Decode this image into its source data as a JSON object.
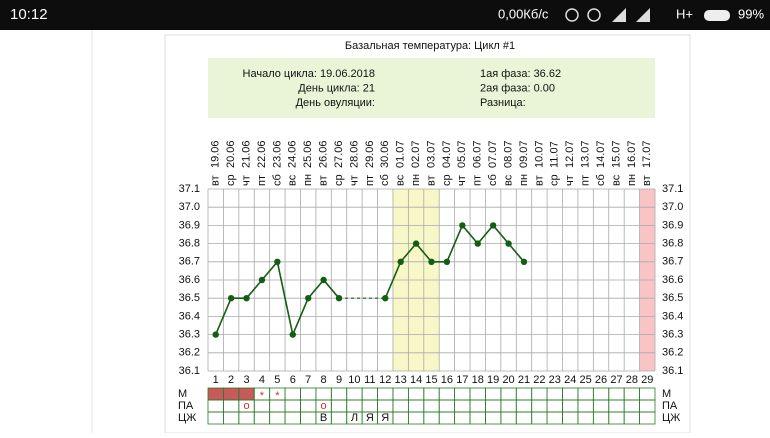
{
  "status_bar": {
    "time": "10:12",
    "speed": "0,00Кб/с",
    "network": "H+",
    "battery": "99%"
  },
  "chart_data": {
    "type": "line",
    "title": "Базальная температура: Цикл #1",
    "info_left": [
      "Начало цикла: 19.06.2018",
      "День цикла: 21",
      "День овуляции:"
    ],
    "info_right": [
      "1ая фаза: 36.62",
      "2ая фаза: 0.00",
      "Разница:"
    ],
    "dates": [
      "19.06",
      "20.06",
      "21.06",
      "22.06",
      "23.06",
      "24.06",
      "25.06",
      "26.06",
      "27.06",
      "28.06",
      "29.06",
      "30.06",
      "01.07",
      "02.07",
      "03.07",
      "04.07",
      "05.07",
      "06.07",
      "07.07",
      "08.07",
      "09.07",
      "10.07",
      "11.07",
      "12.07",
      "13.07",
      "14.07",
      "15.07",
      "16.07",
      "17.07"
    ],
    "weekdays": [
      "вт",
      "ср",
      "чт",
      "пт",
      "сб",
      "вс",
      "пн",
      "вт",
      "ср",
      "чт",
      "пт",
      "сб",
      "вс",
      "пн",
      "вт",
      "ср",
      "чт",
      "пт",
      "сб",
      "вс",
      "пн",
      "вт",
      "ср",
      "чт",
      "пт",
      "сб",
      "вс",
      "пн",
      "вт"
    ],
    "categories": [
      1,
      2,
      3,
      4,
      5,
      6,
      7,
      8,
      9,
      10,
      11,
      12,
      13,
      14,
      15,
      16,
      17,
      18,
      19,
      20,
      21,
      22,
      23,
      24,
      25,
      26,
      27,
      28,
      29
    ],
    "values": [
      36.3,
      36.5,
      36.5,
      36.6,
      36.7,
      36.3,
      36.5,
      36.6,
      36.5,
      null,
      null,
      36.5,
      36.7,
      36.8,
      36.7,
      36.7,
      36.9,
      36.8,
      36.9,
      36.8,
      36.7,
      null,
      null,
      null,
      null,
      null,
      null,
      null,
      null
    ],
    "color": "#145e14",
    "ylim": [
      36.05,
      37.1
    ],
    "yticks": [
      36.1,
      36.2,
      36.3,
      36.4,
      36.5,
      36.6,
      36.7,
      36.8,
      36.9,
      {
        "value": 37,
        "label": "37.0"
      },
      37.1
    ],
    "grid": true,
    "highlight_days": [
      13,
      14,
      15
    ],
    "highlight_color": "#f7f7c8",
    "period_days": [
      29
    ],
    "period_color": "#f8c4c4",
    "rows": [
      {
        "label": "М",
        "filled": [
          1,
          2,
          3
        ],
        "cells": [
          {
            "day": 4,
            "text": "*"
          },
          {
            "day": 5,
            "text": "*"
          }
        ]
      },
      {
        "label": "ПА",
        "filled": [],
        "cells": [
          {
            "day": 3,
            "text": "o"
          },
          {
            "day": 8,
            "text": "o"
          }
        ]
      },
      {
        "label": "ЦЖ",
        "filled": [],
        "cells": [
          {
            "day": 8,
            "text": "В"
          },
          {
            "day": 10,
            "text": "Л"
          },
          {
            "day": 11,
            "text": "Я"
          },
          {
            "day": 12,
            "text": "Я"
          }
        ]
      }
    ]
  }
}
